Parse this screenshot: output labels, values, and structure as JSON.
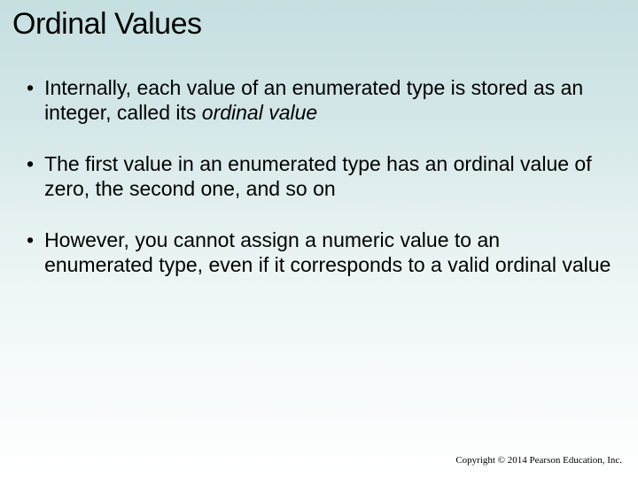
{
  "slide": {
    "title": "Ordinal Values",
    "bullets": [
      {
        "marker": "•",
        "prefix": "Internally, each value of an enumerated type is stored as an integer, called its ",
        "italic": "ordinal value",
        "suffix": ""
      },
      {
        "marker": "•",
        "prefix": "The first value in an enumerated type has an ordinal value of zero, the second one, and so on",
        "italic": "",
        "suffix": ""
      },
      {
        "marker": "•",
        "prefix": "However, you cannot assign a numeric value to an enumerated type, even if it corresponds to a valid ordinal value",
        "italic": "",
        "suffix": ""
      }
    ],
    "copyright": "Copyright © 2014 Pearson Education, Inc."
  },
  "style": {
    "background_gradient_top": "#c5dfe0",
    "background_gradient_bottom": "#ffffff",
    "text_color": "#000000",
    "title_fontsize": 34,
    "body_fontsize": 23,
    "copyright_fontsize": 11
  }
}
